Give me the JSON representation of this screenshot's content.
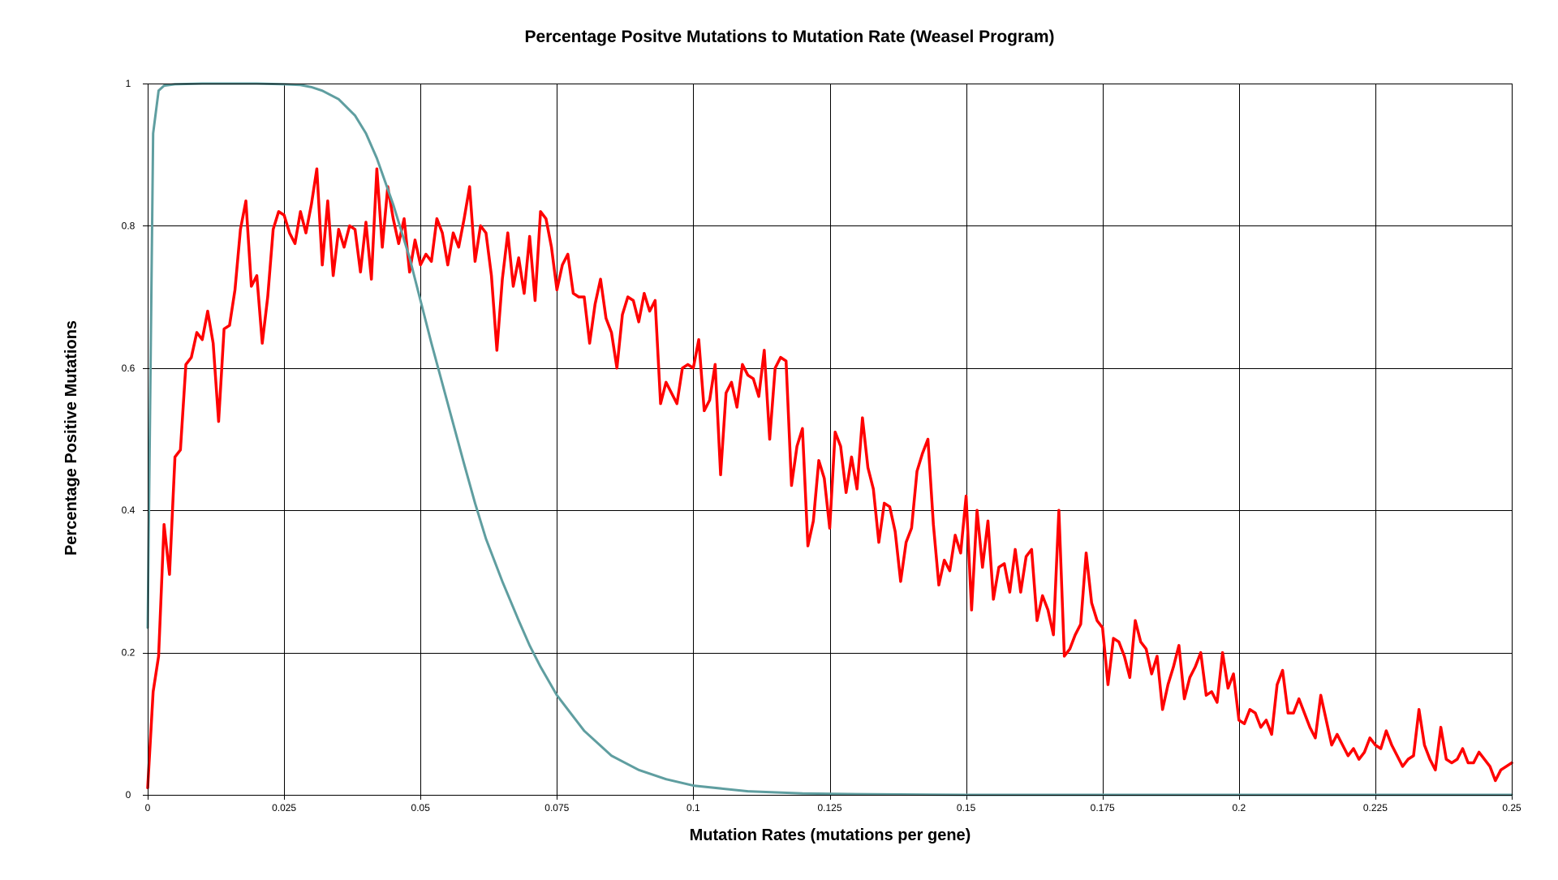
{
  "chart_data": {
    "type": "line",
    "title": "Percentage Positve Mutations to Mutation Rate (Weasel Program)",
    "xlabel": "Mutation Rates (mutations per gene)",
    "ylabel": "Percentage Positive Mutations",
    "xlim": [
      0,
      0.25
    ],
    "ylim": [
      0,
      1
    ],
    "grid": true,
    "legend": "none",
    "x_ticks": [
      0,
      0.025,
      0.05,
      0.075,
      0.1,
      0.125,
      0.15,
      0.175,
      0.2,
      0.225,
      0.25
    ],
    "x_tick_labels": [
      "0",
      "0.025",
      "0.05",
      "0.075",
      "0.1",
      "0.125",
      "0.15",
      "0.175",
      "0.2",
      "0.225",
      "0.25"
    ],
    "y_ticks": [
      0,
      0.2,
      0.4,
      0.6,
      0.8,
      1
    ],
    "y_tick_labels": [
      "0",
      "0.2",
      "0.4",
      "0.6",
      "0.8",
      "1"
    ],
    "series": [
      {
        "color": "#ff0000",
        "points": [
          [
            0.0,
            0.01
          ],
          [
            0.001,
            0.145
          ],
          [
            0.002,
            0.195
          ],
          [
            0.003,
            0.38
          ],
          [
            0.004,
            0.31
          ],
          [
            0.005,
            0.475
          ],
          [
            0.006,
            0.485
          ],
          [
            0.007,
            0.605
          ],
          [
            0.008,
            0.615
          ],
          [
            0.009,
            0.65
          ],
          [
            0.01,
            0.64
          ],
          [
            0.011,
            0.68
          ],
          [
            0.012,
            0.635
          ],
          [
            0.013,
            0.525
          ],
          [
            0.014,
            0.655
          ],
          [
            0.015,
            0.66
          ],
          [
            0.016,
            0.71
          ],
          [
            0.017,
            0.795
          ],
          [
            0.018,
            0.835
          ],
          [
            0.019,
            0.715
          ],
          [
            0.02,
            0.73
          ],
          [
            0.021,
            0.635
          ],
          [
            0.022,
            0.7
          ],
          [
            0.023,
            0.795
          ],
          [
            0.024,
            0.82
          ],
          [
            0.025,
            0.815
          ],
          [
            0.026,
            0.79
          ],
          [
            0.027,
            0.775
          ],
          [
            0.028,
            0.82
          ],
          [
            0.029,
            0.79
          ],
          [
            0.03,
            0.83
          ],
          [
            0.031,
            0.88
          ],
          [
            0.032,
            0.745
          ],
          [
            0.033,
            0.835
          ],
          [
            0.034,
            0.73
          ],
          [
            0.035,
            0.795
          ],
          [
            0.036,
            0.77
          ],
          [
            0.037,
            0.8
          ],
          [
            0.038,
            0.795
          ],
          [
            0.039,
            0.735
          ],
          [
            0.04,
            0.805
          ],
          [
            0.041,
            0.725
          ],
          [
            0.042,
            0.88
          ],
          [
            0.043,
            0.77
          ],
          [
            0.044,
            0.855
          ],
          [
            0.045,
            0.81
          ],
          [
            0.046,
            0.775
          ],
          [
            0.047,
            0.81
          ],
          [
            0.048,
            0.735
          ],
          [
            0.049,
            0.78
          ],
          [
            0.05,
            0.745
          ],
          [
            0.051,
            0.76
          ],
          [
            0.052,
            0.75
          ],
          [
            0.053,
            0.81
          ],
          [
            0.054,
            0.79
          ],
          [
            0.055,
            0.745
          ],
          [
            0.056,
            0.79
          ],
          [
            0.057,
            0.77
          ],
          [
            0.058,
            0.81
          ],
          [
            0.059,
            0.855
          ],
          [
            0.06,
            0.75
          ],
          [
            0.061,
            0.8
          ],
          [
            0.062,
            0.79
          ],
          [
            0.063,
            0.73
          ],
          [
            0.064,
            0.625
          ],
          [
            0.065,
            0.725
          ],
          [
            0.066,
            0.79
          ],
          [
            0.067,
            0.715
          ],
          [
            0.068,
            0.755
          ],
          [
            0.069,
            0.705
          ],
          [
            0.07,
            0.785
          ],
          [
            0.071,
            0.695
          ],
          [
            0.072,
            0.82
          ],
          [
            0.073,
            0.81
          ],
          [
            0.074,
            0.77
          ],
          [
            0.075,
            0.71
          ],
          [
            0.076,
            0.745
          ],
          [
            0.077,
            0.76
          ],
          [
            0.078,
            0.705
          ],
          [
            0.079,
            0.7
          ],
          [
            0.08,
            0.7
          ],
          [
            0.081,
            0.635
          ],
          [
            0.082,
            0.69
          ],
          [
            0.083,
            0.725
          ],
          [
            0.084,
            0.67
          ],
          [
            0.085,
            0.65
          ],
          [
            0.086,
            0.6
          ],
          [
            0.087,
            0.675
          ],
          [
            0.088,
            0.7
          ],
          [
            0.089,
            0.695
          ],
          [
            0.09,
            0.665
          ],
          [
            0.091,
            0.705
          ],
          [
            0.092,
            0.68
          ],
          [
            0.093,
            0.695
          ],
          [
            0.094,
            0.55
          ],
          [
            0.095,
            0.58
          ],
          [
            0.096,
            0.565
          ],
          [
            0.097,
            0.55
          ],
          [
            0.098,
            0.6
          ],
          [
            0.099,
            0.605
          ],
          [
            0.1,
            0.6
          ],
          [
            0.101,
            0.64
          ],
          [
            0.102,
            0.54
          ],
          [
            0.103,
            0.555
          ],
          [
            0.104,
            0.605
          ],
          [
            0.105,
            0.45
          ],
          [
            0.106,
            0.565
          ],
          [
            0.107,
            0.58
          ],
          [
            0.108,
            0.545
          ],
          [
            0.109,
            0.605
          ],
          [
            0.11,
            0.59
          ],
          [
            0.111,
            0.585
          ],
          [
            0.112,
            0.56
          ],
          [
            0.113,
            0.625
          ],
          [
            0.114,
            0.5
          ],
          [
            0.115,
            0.6
          ],
          [
            0.116,
            0.615
          ],
          [
            0.117,
            0.61
          ],
          [
            0.118,
            0.435
          ],
          [
            0.119,
            0.49
          ],
          [
            0.12,
            0.515
          ],
          [
            0.121,
            0.35
          ],
          [
            0.122,
            0.385
          ],
          [
            0.123,
            0.47
          ],
          [
            0.124,
            0.445
          ],
          [
            0.125,
            0.375
          ],
          [
            0.126,
            0.51
          ],
          [
            0.127,
            0.49
          ],
          [
            0.128,
            0.425
          ],
          [
            0.129,
            0.475
          ],
          [
            0.13,
            0.43
          ],
          [
            0.131,
            0.53
          ],
          [
            0.132,
            0.46
          ],
          [
            0.133,
            0.43
          ],
          [
            0.134,
            0.355
          ],
          [
            0.135,
            0.41
          ],
          [
            0.136,
            0.405
          ],
          [
            0.137,
            0.37
          ],
          [
            0.138,
            0.3
          ],
          [
            0.139,
            0.355
          ],
          [
            0.14,
            0.375
          ],
          [
            0.141,
            0.455
          ],
          [
            0.142,
            0.48
          ],
          [
            0.143,
            0.5
          ],
          [
            0.144,
            0.38
          ],
          [
            0.145,
            0.295
          ],
          [
            0.146,
            0.33
          ],
          [
            0.147,
            0.315
          ],
          [
            0.148,
            0.365
          ],
          [
            0.149,
            0.34
          ],
          [
            0.15,
            0.42
          ],
          [
            0.151,
            0.26
          ],
          [
            0.152,
            0.4
          ],
          [
            0.153,
            0.32
          ],
          [
            0.154,
            0.385
          ],
          [
            0.155,
            0.275
          ],
          [
            0.156,
            0.32
          ],
          [
            0.157,
            0.325
          ],
          [
            0.158,
            0.285
          ],
          [
            0.159,
            0.345
          ],
          [
            0.16,
            0.285
          ],
          [
            0.161,
            0.335
          ],
          [
            0.162,
            0.345
          ],
          [
            0.163,
            0.245
          ],
          [
            0.164,
            0.28
          ],
          [
            0.165,
            0.26
          ],
          [
            0.166,
            0.225
          ],
          [
            0.167,
            0.4
          ],
          [
            0.168,
            0.195
          ],
          [
            0.169,
            0.205
          ],
          [
            0.17,
            0.225
          ],
          [
            0.171,
            0.24
          ],
          [
            0.172,
            0.34
          ],
          [
            0.173,
            0.27
          ],
          [
            0.174,
            0.245
          ],
          [
            0.175,
            0.235
          ],
          [
            0.176,
            0.155
          ],
          [
            0.177,
            0.22
          ],
          [
            0.178,
            0.215
          ],
          [
            0.179,
            0.195
          ],
          [
            0.18,
            0.165
          ],
          [
            0.181,
            0.245
          ],
          [
            0.182,
            0.215
          ],
          [
            0.183,
            0.205
          ],
          [
            0.184,
            0.17
          ],
          [
            0.185,
            0.195
          ],
          [
            0.186,
            0.12
          ],
          [
            0.187,
            0.155
          ],
          [
            0.188,
            0.18
          ],
          [
            0.189,
            0.21
          ],
          [
            0.19,
            0.135
          ],
          [
            0.191,
            0.165
          ],
          [
            0.192,
            0.18
          ],
          [
            0.193,
            0.2
          ],
          [
            0.194,
            0.14
          ],
          [
            0.195,
            0.145
          ],
          [
            0.196,
            0.13
          ],
          [
            0.197,
            0.2
          ],
          [
            0.198,
            0.15
          ],
          [
            0.199,
            0.17
          ],
          [
            0.2,
            0.105
          ],
          [
            0.201,
            0.1
          ],
          [
            0.202,
            0.12
          ],
          [
            0.203,
            0.115
          ],
          [
            0.204,
            0.095
          ],
          [
            0.205,
            0.105
          ],
          [
            0.206,
            0.085
          ],
          [
            0.207,
            0.155
          ],
          [
            0.208,
            0.175
          ],
          [
            0.209,
            0.115
          ],
          [
            0.21,
            0.115
          ],
          [
            0.211,
            0.135
          ],
          [
            0.212,
            0.115
          ],
          [
            0.213,
            0.095
          ],
          [
            0.214,
            0.08
          ],
          [
            0.215,
            0.14
          ],
          [
            0.216,
            0.105
          ],
          [
            0.217,
            0.07
          ],
          [
            0.218,
            0.085
          ],
          [
            0.219,
            0.07
          ],
          [
            0.22,
            0.055
          ],
          [
            0.221,
            0.065
          ],
          [
            0.222,
            0.05
          ],
          [
            0.223,
            0.06
          ],
          [
            0.224,
            0.08
          ],
          [
            0.225,
            0.07
          ],
          [
            0.226,
            0.065
          ],
          [
            0.227,
            0.09
          ],
          [
            0.228,
            0.07
          ],
          [
            0.229,
            0.055
          ],
          [
            0.23,
            0.04
          ],
          [
            0.231,
            0.05
          ],
          [
            0.232,
            0.055
          ],
          [
            0.233,
            0.12
          ],
          [
            0.234,
            0.07
          ],
          [
            0.235,
            0.05
          ],
          [
            0.236,
            0.035
          ],
          [
            0.237,
            0.095
          ],
          [
            0.238,
            0.05
          ],
          [
            0.239,
            0.045
          ],
          [
            0.24,
            0.05
          ],
          [
            0.241,
            0.065
          ],
          [
            0.242,
            0.045
          ],
          [
            0.243,
            0.045
          ],
          [
            0.244,
            0.06
          ],
          [
            0.245,
            0.05
          ],
          [
            0.246,
            0.04
          ],
          [
            0.247,
            0.02
          ],
          [
            0.248,
            0.035
          ],
          [
            0.249,
            0.04
          ],
          [
            0.25,
            0.045
          ]
        ]
      },
      {
        "color": "#5f9ea0",
        "points": [
          [
            0.0,
            0.235
          ],
          [
            0.001,
            0.93
          ],
          [
            0.002,
            0.99
          ],
          [
            0.003,
            0.997
          ],
          [
            0.005,
            0.999
          ],
          [
            0.01,
            1.0
          ],
          [
            0.02,
            1.0
          ],
          [
            0.025,
            0.999
          ],
          [
            0.028,
            0.998
          ],
          [
            0.03,
            0.995
          ],
          [
            0.032,
            0.99
          ],
          [
            0.035,
            0.978
          ],
          [
            0.038,
            0.955
          ],
          [
            0.04,
            0.93
          ],
          [
            0.042,
            0.895
          ],
          [
            0.045,
            0.83
          ],
          [
            0.048,
            0.755
          ],
          [
            0.05,
            0.695
          ],
          [
            0.052,
            0.635
          ],
          [
            0.055,
            0.55
          ],
          [
            0.058,
            0.465
          ],
          [
            0.06,
            0.41
          ],
          [
            0.062,
            0.36
          ],
          [
            0.065,
            0.3
          ],
          [
            0.068,
            0.245
          ],
          [
            0.07,
            0.21
          ],
          [
            0.072,
            0.18
          ],
          [
            0.075,
            0.14
          ],
          [
            0.078,
            0.11
          ],
          [
            0.08,
            0.09
          ],
          [
            0.085,
            0.055
          ],
          [
            0.09,
            0.035
          ],
          [
            0.095,
            0.022
          ],
          [
            0.1,
            0.013
          ],
          [
            0.11,
            0.005
          ],
          [
            0.12,
            0.002
          ],
          [
            0.13,
            0.001
          ],
          [
            0.15,
            0.0
          ],
          [
            0.2,
            0.0
          ],
          [
            0.25,
            0.0
          ]
        ]
      }
    ]
  }
}
